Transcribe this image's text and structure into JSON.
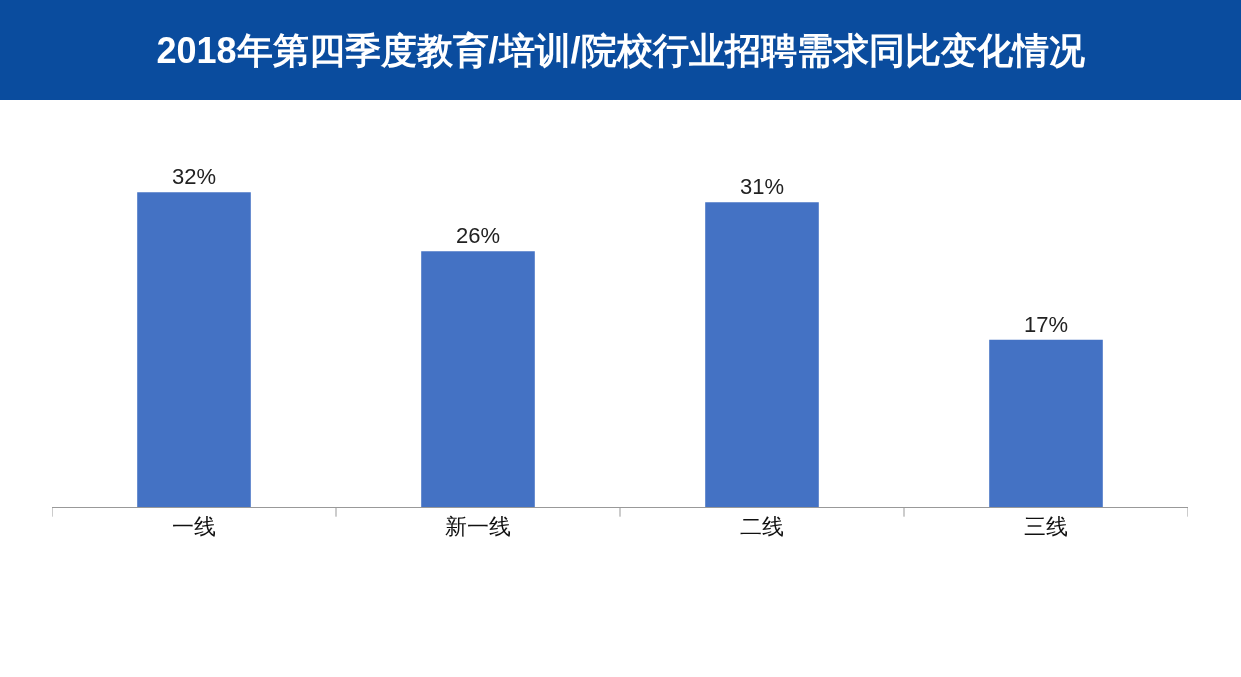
{
  "chart_data": {
    "type": "bar",
    "title": "2018年第四季度教育/培训/院校行业招聘需求同比变化情况",
    "categories": [
      "一线",
      "新一线",
      "二线",
      "三线"
    ],
    "values": [
      32,
      26,
      31,
      17
    ],
    "value_labels": [
      "32%",
      "26%",
      "31%",
      "17%"
    ],
    "color": "#4472c4",
    "grid": false,
    "legend": false
  }
}
